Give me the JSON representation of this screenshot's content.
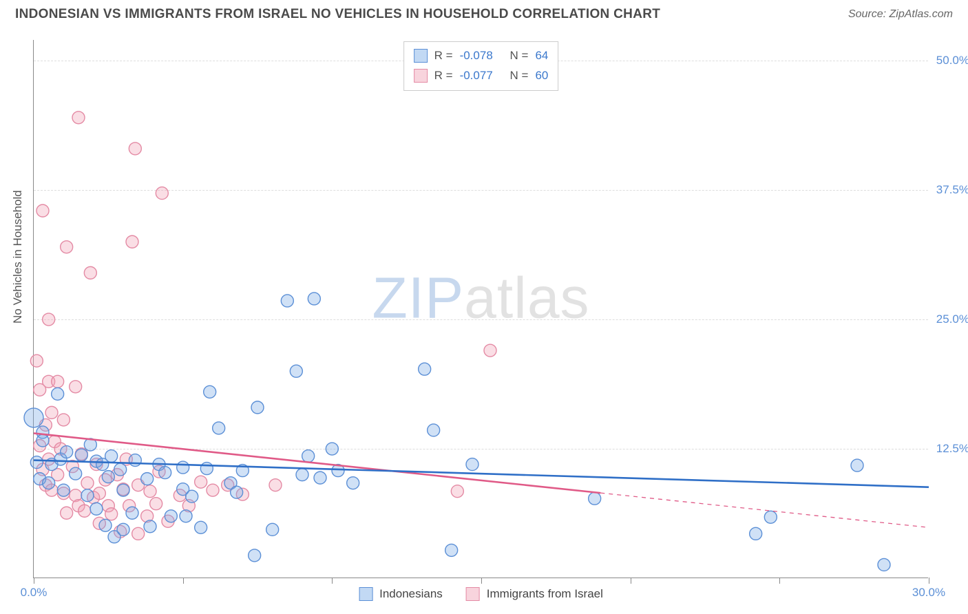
{
  "header": {
    "title": "INDONESIAN VS IMMIGRANTS FROM ISRAEL NO VEHICLES IN HOUSEHOLD CORRELATION CHART",
    "source_prefix": "Source: ",
    "source_name": "ZipAtlas.com"
  },
  "y_axis": {
    "label": "No Vehicles in Household"
  },
  "watermark": {
    "zip": "ZIP",
    "atlas": "atlas"
  },
  "chart": {
    "type": "scatter",
    "xlim": [
      0,
      30
    ],
    "ylim": [
      0,
      52
    ],
    "x_ticks": [
      0,
      5,
      10,
      15,
      20,
      25,
      30
    ],
    "x_tick_labels": {
      "0": "0.0%",
      "30": "30.0%"
    },
    "y_grid": [
      12.5,
      25.0,
      37.5,
      50.0
    ],
    "y_tick_labels": [
      "12.5%",
      "25.0%",
      "37.5%",
      "50.0%"
    ],
    "background_color": "#ffffff",
    "grid_color": "#dddddd",
    "axis_color": "#888888",
    "marker_radius": 9,
    "marker_stroke_width": 1.4,
    "trend_width": 2.6,
    "series": {
      "blue": {
        "label": "Indonesians",
        "fill": "rgba(120,170,230,0.35)",
        "stroke": "#5b8fd6",
        "R": "-0.078",
        "N": "64",
        "trend": {
          "y_at_x0": 11.4,
          "y_at_x30": 8.8,
          "solid_to_x": 30
        },
        "points": [
          [
            0.0,
            15.5,
            14
          ],
          [
            0.1,
            11.2,
            9
          ],
          [
            0.2,
            9.6,
            9
          ],
          [
            0.3,
            14.1,
            9
          ],
          [
            0.3,
            13.3,
            9
          ],
          [
            0.5,
            9.2,
            9
          ],
          [
            0.6,
            11.0,
            9
          ],
          [
            0.8,
            17.8,
            9
          ],
          [
            0.9,
            11.5,
            9
          ],
          [
            1.0,
            8.5,
            9
          ],
          [
            1.1,
            12.2,
            9
          ],
          [
            1.4,
            10.1,
            9
          ],
          [
            1.6,
            11.9,
            9
          ],
          [
            1.8,
            8.0,
            9
          ],
          [
            1.9,
            12.9,
            9
          ],
          [
            2.1,
            11.3,
            9
          ],
          [
            2.1,
            6.7,
            9
          ],
          [
            2.3,
            11.0,
            9
          ],
          [
            2.4,
            5.1,
            9
          ],
          [
            2.5,
            9.8,
            9
          ],
          [
            2.6,
            11.8,
            9
          ],
          [
            2.7,
            4.0,
            9
          ],
          [
            2.9,
            10.5,
            9
          ],
          [
            3.0,
            8.5,
            9
          ],
          [
            3.0,
            4.7,
            9
          ],
          [
            3.3,
            6.3,
            9
          ],
          [
            3.4,
            11.4,
            9
          ],
          [
            3.8,
            9.6,
            9
          ],
          [
            3.9,
            5.0,
            9
          ],
          [
            4.2,
            11.0,
            9
          ],
          [
            4.4,
            10.2,
            9
          ],
          [
            4.6,
            6.0,
            9
          ],
          [
            5.0,
            10.7,
            9
          ],
          [
            5.0,
            8.6,
            9
          ],
          [
            5.1,
            6.0,
            9
          ],
          [
            5.3,
            7.9,
            9
          ],
          [
            5.6,
            4.9,
            9
          ],
          [
            5.8,
            10.6,
            9
          ],
          [
            5.9,
            18.0,
            9
          ],
          [
            6.2,
            14.5,
            9
          ],
          [
            6.6,
            9.2,
            9
          ],
          [
            6.8,
            8.3,
            9
          ],
          [
            7.0,
            10.4,
            9
          ],
          [
            7.4,
            2.2,
            9
          ],
          [
            7.5,
            16.5,
            9
          ],
          [
            8.0,
            4.7,
            9
          ],
          [
            8.5,
            26.8,
            9
          ],
          [
            8.8,
            20.0,
            9
          ],
          [
            9.0,
            10.0,
            9
          ],
          [
            9.2,
            11.8,
            9
          ],
          [
            9.4,
            27.0,
            9
          ],
          [
            9.6,
            9.7,
            9
          ],
          [
            10.0,
            12.5,
            9
          ],
          [
            10.2,
            10.4,
            9
          ],
          [
            10.7,
            9.2,
            9
          ],
          [
            13.1,
            20.2,
            9
          ],
          [
            13.4,
            14.3,
            9
          ],
          [
            14.0,
            2.7,
            9
          ],
          [
            14.7,
            11.0,
            9
          ],
          [
            18.8,
            7.7,
            9
          ],
          [
            24.7,
            5.9,
            9
          ],
          [
            27.6,
            10.9,
            9
          ],
          [
            28.5,
            1.3,
            9
          ],
          [
            24.2,
            4.3,
            9
          ]
        ]
      },
      "pink": {
        "label": "Immigrants from Israel",
        "fill": "rgba(240,160,180,0.35)",
        "stroke": "#e48aa4",
        "R": "-0.077",
        "N": "60",
        "trend": {
          "y_at_x0": 14.0,
          "y_at_x30": 4.9,
          "solid_to_x": 19
        },
        "points": [
          [
            0.1,
            21.0,
            9
          ],
          [
            0.2,
            12.8,
            9
          ],
          [
            0.2,
            18.2,
            9
          ],
          [
            0.3,
            35.5,
            9
          ],
          [
            0.3,
            10.5,
            9
          ],
          [
            0.4,
            14.8,
            9
          ],
          [
            0.4,
            9.0,
            9
          ],
          [
            0.5,
            25.0,
            9
          ],
          [
            0.5,
            19.0,
            9
          ],
          [
            0.5,
            11.5,
            9
          ],
          [
            0.6,
            16.0,
            9
          ],
          [
            0.6,
            8.5,
            9
          ],
          [
            0.7,
            13.2,
            9
          ],
          [
            0.8,
            10.0,
            9
          ],
          [
            0.8,
            19.0,
            9
          ],
          [
            0.9,
            12.5,
            9
          ],
          [
            1.0,
            8.2,
            9
          ],
          [
            1.0,
            15.3,
            9
          ],
          [
            1.1,
            32.0,
            9
          ],
          [
            1.1,
            6.3,
            9
          ],
          [
            1.3,
            10.8,
            9
          ],
          [
            1.4,
            8.0,
            9
          ],
          [
            1.4,
            18.5,
            9
          ],
          [
            1.5,
            7.0,
            9
          ],
          [
            1.5,
            44.5,
            9
          ],
          [
            1.6,
            12.0,
            9
          ],
          [
            1.7,
            6.5,
            9
          ],
          [
            1.8,
            9.2,
            9
          ],
          [
            1.9,
            29.5,
            9
          ],
          [
            2.0,
            7.8,
            9
          ],
          [
            2.1,
            11.0,
            9
          ],
          [
            2.2,
            8.2,
            9
          ],
          [
            2.2,
            5.3,
            9
          ],
          [
            2.4,
            9.5,
            9
          ],
          [
            2.5,
            7.0,
            9
          ],
          [
            2.6,
            6.2,
            9
          ],
          [
            2.8,
            10.0,
            9
          ],
          [
            2.9,
            4.5,
            9
          ],
          [
            3.0,
            8.6,
            9
          ],
          [
            3.1,
            11.5,
            9
          ],
          [
            3.2,
            7.0,
            9
          ],
          [
            3.3,
            32.5,
            9
          ],
          [
            3.4,
            41.5,
            9
          ],
          [
            3.5,
            9.0,
            9
          ],
          [
            3.5,
            4.3,
            9
          ],
          [
            3.8,
            6.0,
            9
          ],
          [
            3.9,
            8.4,
            9
          ],
          [
            4.1,
            7.2,
            9
          ],
          [
            4.2,
            10.3,
            9
          ],
          [
            4.3,
            37.2,
            9
          ],
          [
            4.5,
            5.5,
            9
          ],
          [
            4.9,
            8.0,
            9
          ],
          [
            5.2,
            7.0,
            9
          ],
          [
            5.6,
            9.3,
            9
          ],
          [
            6.0,
            8.5,
            9
          ],
          [
            6.5,
            9.0,
            9
          ],
          [
            7.0,
            8.1,
            9
          ],
          [
            8.1,
            9.0,
            9
          ],
          [
            14.2,
            8.4,
            9
          ],
          [
            15.3,
            22.0,
            9
          ]
        ]
      }
    },
    "stats_labels": {
      "R": "R =",
      "N": "N ="
    }
  }
}
